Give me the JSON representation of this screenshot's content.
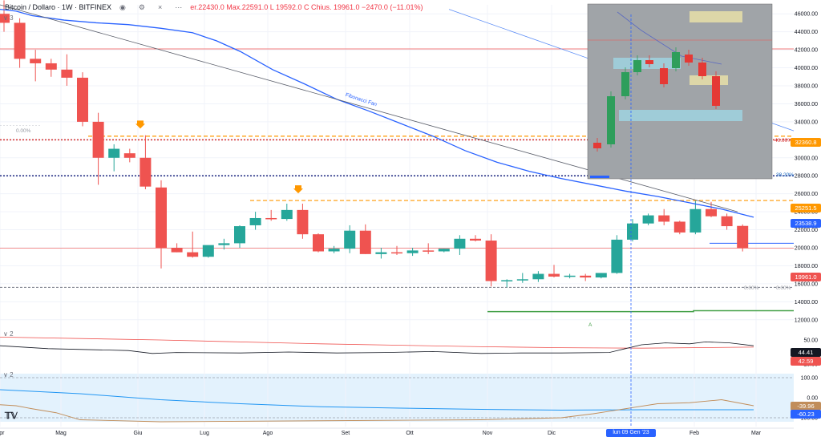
{
  "header": {
    "title": "Bitcoin / Dollaro · 1W · BITFINEX",
    "ohlc": "er.22430.0  Max.22591.0  L 19592.0  C  Chius. 19961.0  −2470.0 (−11.01%)",
    "legend_num_1": "3",
    "legend_num_2": "2",
    "legend_num_3": "2"
  },
  "colors": {
    "up": "#26a69a",
    "down": "#ef5350",
    "ma": "#2962ff",
    "fan": "#5b5f6b"
  },
  "annotations": {
    "fib_fan": "Fibonacci Fan",
    "fib_00_left": "0.00%",
    "fib_40": "40.00%",
    "fib_382": "38.20%",
    "fib_00_right_a": "0.00%",
    "fib_00_right_b": "0.00%",
    "marker_a": "A"
  },
  "price_labels": {
    "p1": "32360.8",
    "p2": "25251.5",
    "p3": "23538.9",
    "p4": "19961.0"
  },
  "osc_labels": {
    "o1": "44.41",
    "o2": "42.59",
    "o3": "-39.96",
    "o4": "-60.23"
  },
  "crosshair_date": "lun 09 Gen '23",
  "chart_data": {
    "type": "candlestick",
    "title": "Bitcoin / Dollaro · 1W · BITFINEX",
    "x_ticks": [
      "Apr",
      "Mag",
      "Giu",
      "Lug",
      "Ago",
      "Set",
      "Ott",
      "Nov",
      "Dic",
      "Feb",
      "Mar"
    ],
    "y_ticks": [
      12000,
      14000,
      16000,
      18000,
      20000,
      22000,
      24000,
      26000,
      28000,
      30000,
      32000,
      34000,
      36000,
      38000,
      40000,
      42000,
      44000,
      46000
    ],
    "ylim": [
      11000,
      47000
    ],
    "osc1_ticks": [
      50.0,
      25.0
    ],
    "osc2_ticks": [
      100.0,
      0.0,
      -100.0
    ],
    "candles": [
      [
        46000,
        47500,
        44000,
        45000
      ],
      [
        45000,
        45500,
        40000,
        41000
      ],
      [
        41000,
        42000,
        38500,
        40500
      ],
      [
        40500,
        41000,
        39000,
        39800
      ],
      [
        39800,
        41500,
        38000,
        38900
      ],
      [
        38900,
        39500,
        33500,
        34000
      ],
      [
        34000,
        35000,
        27000,
        30000
      ],
      [
        30000,
        31500,
        28500,
        31000
      ],
      [
        30500,
        31000,
        29500,
        30000
      ],
      [
        30000,
        32500,
        26500,
        26800
      ],
      [
        26700,
        27500,
        17700,
        20000
      ],
      [
        20000,
        20500,
        19500,
        19500
      ],
      [
        19500,
        21800,
        18900,
        19000
      ],
      [
        19000,
        20200,
        18900,
        20300
      ],
      [
        20300,
        21000,
        19800,
        20500
      ],
      [
        20500,
        22500,
        20000,
        22400
      ],
      [
        22500,
        24000,
        22000,
        23300
      ],
      [
        23300,
        24200,
        23000,
        23200
      ],
      [
        23200,
        24900,
        23000,
        24200
      ],
      [
        24200,
        24900,
        21000,
        21500
      ],
      [
        21500,
        21600,
        19500,
        19600
      ],
      [
        19600,
        20200,
        19400,
        19900
      ],
      [
        19900,
        22500,
        19400,
        21900
      ],
      [
        21900,
        22600,
        19300,
        19300
      ],
      [
        19300,
        20000,
        18800,
        19500
      ],
      [
        19500,
        20200,
        19200,
        19400
      ],
      [
        19400,
        20000,
        19100,
        19700
      ],
      [
        19700,
        20500,
        19300,
        19600
      ],
      [
        19600,
        19900,
        19500,
        19900
      ],
      [
        19900,
        21400,
        19200,
        21000
      ],
      [
        21000,
        21400,
        20700,
        20800
      ],
      [
        20800,
        21500,
        15700,
        16300
      ],
      [
        16300,
        16500,
        15600,
        16400
      ],
      [
        16400,
        17200,
        16100,
        16500
      ],
      [
        16500,
        17400,
        16200,
        17100
      ],
      [
        17100,
        18100,
        16700,
        16800
      ],
      [
        16800,
        17100,
        16600,
        16900
      ],
      [
        16900,
        17100,
        16300,
        16700
      ],
      [
        16700,
        17200,
        16600,
        17200
      ],
      [
        17200,
        21400,
        17100,
        20900
      ],
      [
        20900,
        23200,
        20700,
        22700
      ],
      [
        22700,
        23800,
        22500,
        23600
      ],
      [
        23600,
        24300,
        22500,
        22900
      ],
      [
        22900,
        23000,
        21500,
        21700
      ],
      [
        21700,
        25200,
        21500,
        24300
      ],
      [
        24300,
        25100,
        23400,
        23500
      ],
      [
        23500,
        23800,
        22000,
        22400
      ],
      [
        22430,
        22591,
        19592,
        19961
      ]
    ],
    "ma_series": [
      [
        0,
        46500
      ],
      [
        20,
        46300
      ],
      [
        40,
        45800
      ],
      [
        80,
        45300
      ],
      [
        120,
        45000
      ],
      [
        160,
        44800
      ],
      [
        200,
        44400
      ],
      [
        240,
        43900
      ],
      [
        270,
        43000
      ],
      [
        300,
        41800
      ],
      [
        340,
        39800
      ],
      [
        380,
        38200
      ],
      [
        420,
        36500
      ],
      [
        460,
        35200
      ],
      [
        500,
        33800
      ],
      [
        540,
        32400
      ],
      [
        580,
        30800
      ],
      [
        620,
        29500
      ],
      [
        660,
        28500
      ],
      [
        700,
        27700
      ],
      [
        740,
        27000
      ],
      [
        780,
        26300
      ],
      [
        820,
        25700
      ],
      [
        860,
        25000
      ],
      [
        900,
        24300
      ],
      [
        940,
        23400
      ]
    ],
    "osc1": [
      [
        0,
        44
      ],
      [
        60,
        41
      ],
      [
        160,
        39
      ],
      [
        190,
        36
      ],
      [
        220,
        37
      ],
      [
        300,
        36.5
      ],
      [
        360,
        37.5
      ],
      [
        420,
        36.5
      ],
      [
        480,
        37
      ],
      [
        540,
        38
      ],
      [
        600,
        36
      ],
      [
        650,
        36.5
      ],
      [
        700,
        36.5
      ],
      [
        760,
        37
      ],
      [
        780,
        41
      ],
      [
        800,
        45
      ],
      [
        830,
        47
      ],
      [
        860,
        46
      ],
      [
        880,
        48
      ],
      [
        910,
        47
      ],
      [
        940,
        44
      ]
    ],
    "osc1_signal": [
      [
        0,
        53
      ],
      [
        200,
        50
      ],
      [
        400,
        46
      ],
      [
        600,
        43
      ],
      [
        700,
        42
      ],
      [
        800,
        41.5
      ],
      [
        940,
        42.6
      ]
    ],
    "osc2": [
      [
        0,
        -35
      ],
      [
        20,
        -40
      ],
      [
        40,
        -55
      ],
      [
        70,
        -75
      ],
      [
        100,
        -110
      ],
      [
        200,
        -120
      ],
      [
        400,
        -115
      ],
      [
        600,
        -110
      ],
      [
        700,
        -100
      ],
      [
        740,
        -80
      ],
      [
        780,
        -55
      ],
      [
        820,
        -30
      ],
      [
        860,
        -25
      ],
      [
        900,
        -10
      ],
      [
        940,
        -40
      ]
    ],
    "osc2_signal": [
      [
        0,
        40
      ],
      [
        100,
        20
      ],
      [
        200,
        -10
      ],
      [
        300,
        -30
      ],
      [
        400,
        -45
      ],
      [
        500,
        -52
      ],
      [
        600,
        -58
      ],
      [
        700,
        -62
      ],
      [
        800,
        -60
      ],
      [
        900,
        -60
      ],
      [
        940,
        -60
      ]
    ]
  }
}
